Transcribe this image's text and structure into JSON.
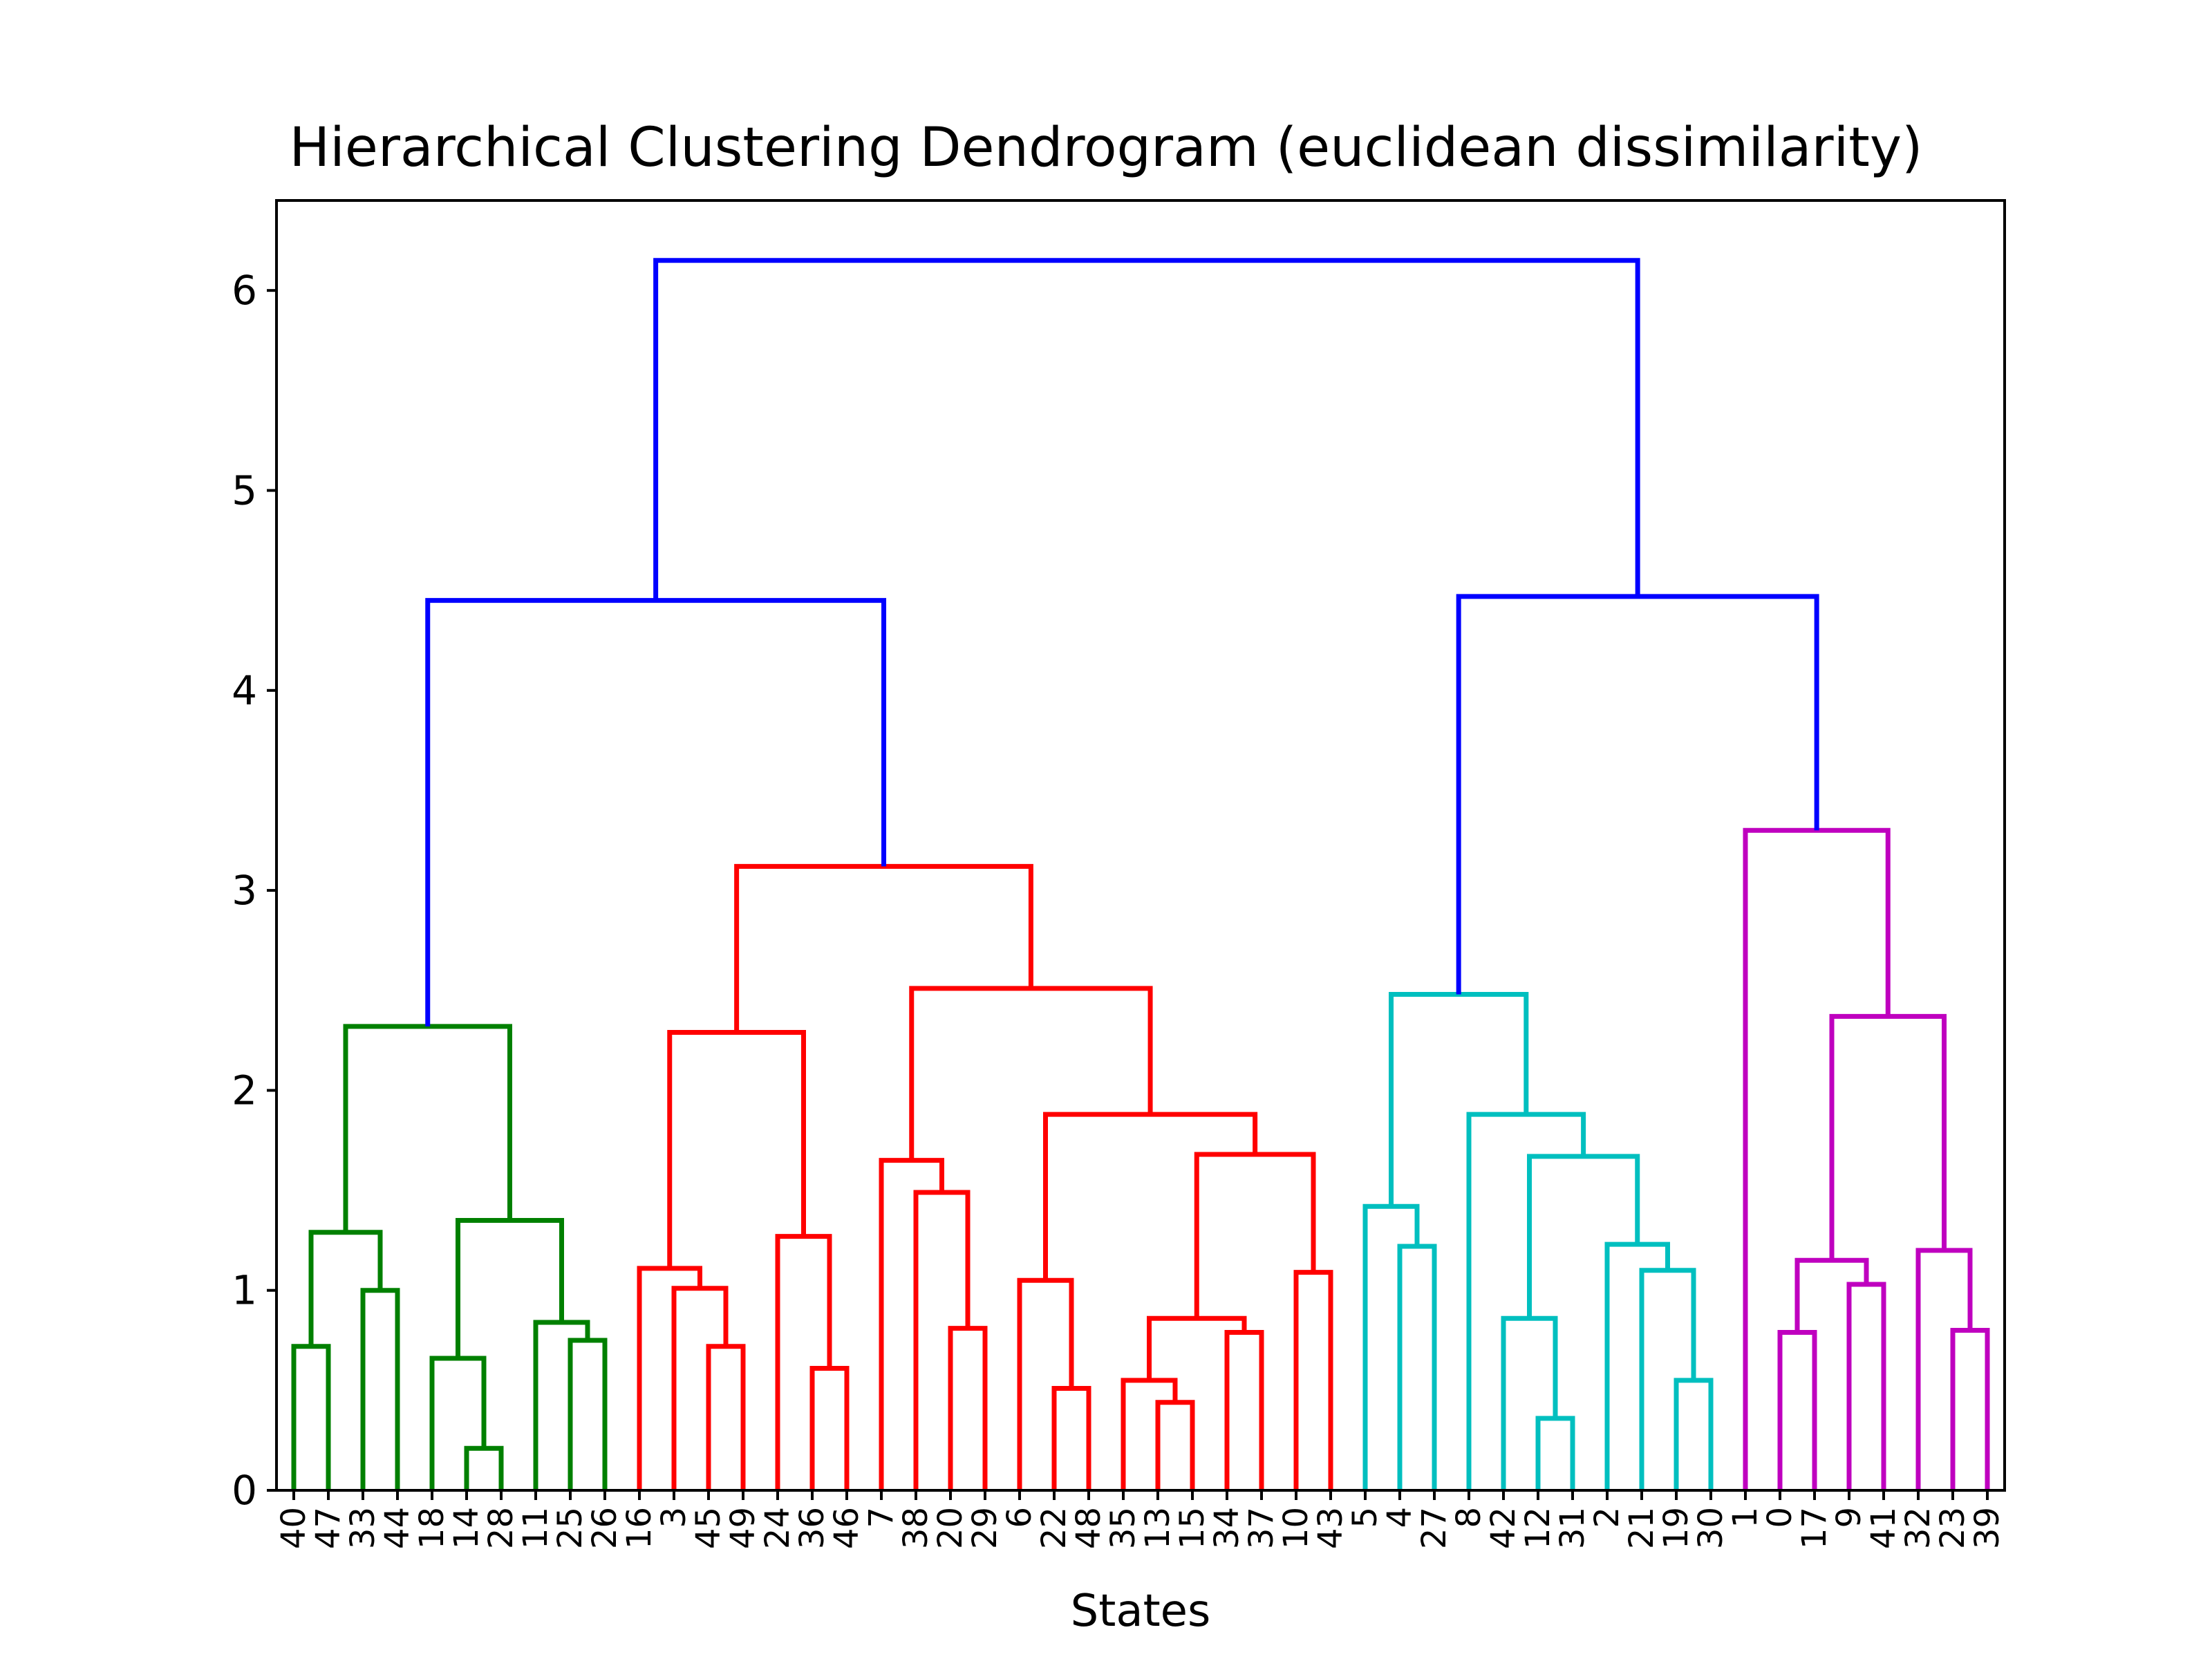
{
  "chart_data": {
    "type": "dendrogram",
    "title": "Hierarchical Clustering Dendrogram (euclidean dissimilarity)",
    "xlabel": "States",
    "ylabel": "",
    "ylim": [
      0,
      6.45
    ],
    "y_ticks": [
      0,
      1,
      2,
      3,
      4,
      5,
      6
    ],
    "leaf_order": [
      "40",
      "47",
      "33",
      "44",
      "18",
      "14",
      "28",
      "11",
      "25",
      "26",
      "16",
      "3",
      "45",
      "49",
      "24",
      "36",
      "46",
      "7",
      "38",
      "20",
      "29",
      "6",
      "22",
      "48",
      "35",
      "13",
      "15",
      "34",
      "37",
      "10",
      "43",
      "5",
      "4",
      "27",
      "8",
      "42",
      "12",
      "31",
      "2",
      "21",
      "19",
      "30",
      "1",
      "0",
      "17",
      "9",
      "41",
      "32",
      "23",
      "39"
    ],
    "colors": {
      "green": "#008000",
      "red": "#ff0000",
      "cyan": "#00bfbf",
      "magenta": "#bf00bf",
      "above_threshold": "#0000ff"
    },
    "merges": [
      {
        "left": "40",
        "right": "47",
        "height": 0.72,
        "color": "green"
      },
      {
        "left": "33",
        "right": "44",
        "height": 1.0,
        "color": "green"
      },
      {
        "left": "c1",
        "right": "c2",
        "height": 1.29,
        "color": "green",
        "id": "c3"
      },
      {
        "left": "14",
        "right": "28",
        "height": 0.21,
        "color": "green",
        "id": "c4"
      },
      {
        "left": "18",
        "right": "c4",
        "height": 0.66,
        "color": "green",
        "id": "c5"
      },
      {
        "left": "25",
        "right": "26",
        "height": 0.75,
        "color": "green",
        "id": "c6"
      },
      {
        "left": "11",
        "right": "c6",
        "height": 0.84,
        "color": "green",
        "id": "c7"
      },
      {
        "left": "c5",
        "right": "c7",
        "height": 1.35,
        "color": "green",
        "id": "c8"
      },
      {
        "left": "c3",
        "right": "c8",
        "height": 2.32,
        "color": "green",
        "id": "G"
      },
      {
        "left": "45",
        "right": "49",
        "height": 0.72,
        "color": "red",
        "id": "r1"
      },
      {
        "left": "3",
        "right": "r1",
        "height": 1.01,
        "color": "red",
        "id": "r2"
      },
      {
        "left": "16",
        "right": "r2",
        "height": 1.11,
        "color": "red",
        "id": "r3"
      },
      {
        "left": "36",
        "right": "46",
        "height": 0.61,
        "color": "red",
        "id": "r4"
      },
      {
        "left": "24",
        "right": "r4",
        "height": 1.27,
        "color": "red",
        "id": "r5"
      },
      {
        "left": "r3",
        "right": "r5",
        "height": 2.29,
        "color": "red",
        "id": "r6"
      },
      {
        "left": "20",
        "right": "29",
        "height": 0.81,
        "color": "red",
        "id": "r7"
      },
      {
        "left": "38",
        "right": "r7",
        "height": 1.49,
        "color": "red",
        "id": "r8"
      },
      {
        "left": "7",
        "right": "r8",
        "height": 1.65,
        "color": "red",
        "id": "r9"
      },
      {
        "left": "22",
        "right": "48",
        "height": 0.51,
        "color": "red",
        "id": "r10"
      },
      {
        "left": "6",
        "right": "r10",
        "height": 1.05,
        "color": "red",
        "id": "r11"
      },
      {
        "left": "13",
        "right": "15",
        "height": 0.44,
        "color": "red",
        "id": "r12"
      },
      {
        "left": "35",
        "right": "r12",
        "height": 0.55,
        "color": "red",
        "id": "r13"
      },
      {
        "left": "34",
        "right": "37",
        "height": 0.79,
        "color": "red",
        "id": "r14"
      },
      {
        "left": "r13",
        "right": "r14",
        "height": 0.86,
        "color": "red",
        "id": "r15"
      },
      {
        "left": "10",
        "right": "43",
        "height": 1.09,
        "color": "red",
        "id": "r16"
      },
      {
        "left": "r15",
        "right": "r16",
        "height": 1.68,
        "color": "red",
        "id": "r17"
      },
      {
        "left": "r11",
        "right": "r17",
        "height": 1.88,
        "color": "red",
        "id": "r18"
      },
      {
        "left": "r9",
        "right": "r18",
        "height": 2.51,
        "color": "red",
        "id": "r19"
      },
      {
        "left": "r6",
        "right": "r19",
        "height": 3.12,
        "color": "red",
        "id": "R"
      },
      {
        "left": "4",
        "right": "27",
        "height": 1.22,
        "color": "cyan",
        "id": "k1"
      },
      {
        "left": "5",
        "right": "k1",
        "height": 1.42,
        "color": "cyan",
        "id": "k2"
      },
      {
        "left": "12",
        "right": "31",
        "height": 0.36,
        "color": "cyan",
        "id": "k3"
      },
      {
        "left": "42",
        "right": "k3",
        "height": 0.86,
        "color": "cyan",
        "id": "k4"
      },
      {
        "left": "19",
        "right": "30",
        "height": 0.55,
        "color": "cyan",
        "id": "k5"
      },
      {
        "left": "21",
        "right": "k5",
        "height": 1.1,
        "color": "cyan",
        "id": "k6"
      },
      {
        "left": "2",
        "right": "k6",
        "height": 1.23,
        "color": "cyan",
        "id": "k7"
      },
      {
        "left": "k4",
        "right": "k7",
        "height": 1.67,
        "color": "cyan",
        "id": "k8"
      },
      {
        "left": "8",
        "right": "k8",
        "height": 1.88,
        "color": "cyan",
        "id": "k9"
      },
      {
        "left": "k2",
        "right": "k9",
        "height": 2.48,
        "color": "cyan",
        "id": "K"
      },
      {
        "left": "0",
        "right": "17",
        "height": 0.79,
        "color": "magenta",
        "id": "m1"
      },
      {
        "left": "9",
        "right": "41",
        "height": 1.03,
        "color": "magenta",
        "id": "m2"
      },
      {
        "left": "m1",
        "right": "m2",
        "height": 1.15,
        "color": "magenta",
        "id": "m3"
      },
      {
        "left": "23",
        "right": "39",
        "height": 0.8,
        "color": "magenta",
        "id": "m4"
      },
      {
        "left": "32",
        "right": "m4",
        "height": 1.2,
        "color": "magenta",
        "id": "m5"
      },
      {
        "left": "m3",
        "right": "m5",
        "height": 2.37,
        "color": "magenta",
        "id": "m6"
      },
      {
        "left": "1",
        "right": "m6",
        "height": 3.3,
        "color": "magenta",
        "id": "M"
      },
      {
        "left": "G",
        "right": "R",
        "height": 4.45,
        "color": "above_threshold",
        "id": "B1"
      },
      {
        "left": "K",
        "right": "M",
        "height": 4.47,
        "color": "above_threshold",
        "id": "B2"
      },
      {
        "left": "B1",
        "right": "B2",
        "height": 6.15,
        "color": "above_threshold",
        "id": "ROOT"
      }
    ]
  }
}
